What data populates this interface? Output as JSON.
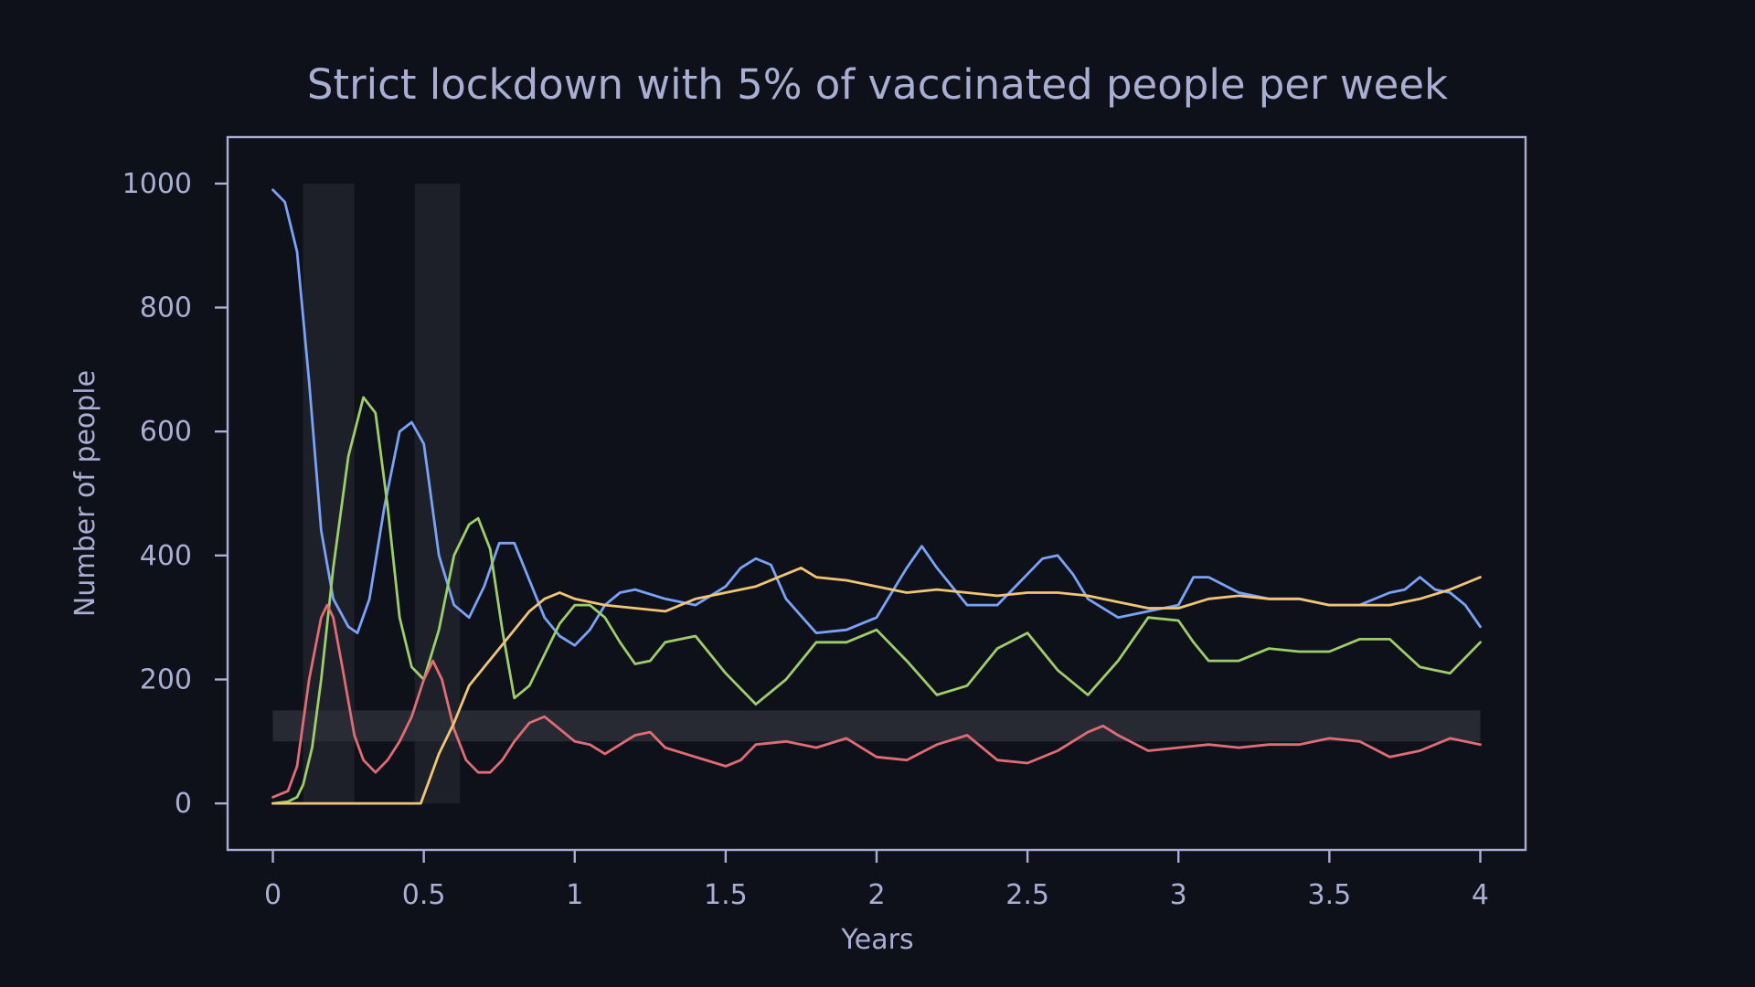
{
  "chart_data": {
    "type": "line",
    "title": "Strict lockdown with 5% of vaccinated people per week",
    "xlabel": "Years",
    "ylabel": "Number of people",
    "xlim": [
      -0.15,
      4.15
    ],
    "ylim": [
      -75,
      1075
    ],
    "x_ticks": [
      0,
      0.5,
      1,
      1.5,
      2,
      2.5,
      3,
      3.5,
      4
    ],
    "x_tick_labels": [
      "0",
      "0.5",
      "1",
      "1.5",
      "2",
      "2.5",
      "3",
      "3.5",
      "4"
    ],
    "y_ticks": [
      0,
      200,
      400,
      600,
      800,
      1000
    ],
    "y_tick_labels": [
      "0",
      "200",
      "400",
      "600",
      "800",
      "1000"
    ],
    "grid": false,
    "shaded_regions": [
      {
        "x0": 0.1,
        "x1": 0.27,
        "y0": 0,
        "y1": 1000
      },
      {
        "x0": 0.47,
        "x1": 0.62,
        "y0": 0,
        "y1": 1000
      }
    ],
    "shaded_band": {
      "x0": 0,
      "x1": 4,
      "y0": 100,
      "y1": 150
    },
    "series": [
      {
        "color": "#7aa2f7",
        "x": [
          0,
          0.04,
          0.08,
          0.12,
          0.16,
          0.2,
          0.25,
          0.28,
          0.32,
          0.37,
          0.42,
          0.46,
          0.5,
          0.55,
          0.6,
          0.65,
          0.7,
          0.75,
          0.8,
          0.85,
          0.9,
          0.95,
          1.0,
          1.05,
          1.1,
          1.15,
          1.2,
          1.3,
          1.4,
          1.5,
          1.55,
          1.6,
          1.65,
          1.7,
          1.8,
          1.9,
          2.0,
          2.05,
          2.1,
          2.15,
          2.2,
          2.3,
          2.4,
          2.5,
          2.55,
          2.6,
          2.65,
          2.7,
          2.8,
          2.9,
          3.0,
          3.05,
          3.1,
          3.2,
          3.3,
          3.4,
          3.5,
          3.6,
          3.7,
          3.75,
          3.8,
          3.85,
          3.9,
          3.95,
          4.0
        ],
        "y": [
          990,
          970,
          890,
          680,
          440,
          330,
          285,
          275,
          330,
          480,
          600,
          615,
          580,
          400,
          320,
          300,
          350,
          420,
          420,
          360,
          300,
          270,
          255,
          280,
          320,
          340,
          345,
          330,
          320,
          350,
          380,
          395,
          385,
          330,
          275,
          280,
          300,
          340,
          380,
          415,
          380,
          320,
          320,
          370,
          395,
          400,
          370,
          330,
          300,
          310,
          320,
          365,
          365,
          340,
          330,
          330,
          320,
          320,
          340,
          345,
          365,
          345,
          340,
          320,
          285
        ]
      },
      {
        "color": "#9ece6a",
        "x": [
          0,
          0.05,
          0.08,
          0.1,
          0.13,
          0.16,
          0.2,
          0.25,
          0.3,
          0.34,
          0.38,
          0.42,
          0.46,
          0.5,
          0.55,
          0.6,
          0.65,
          0.68,
          0.72,
          0.76,
          0.8,
          0.85,
          0.9,
          0.95,
          1.0,
          1.05,
          1.1,
          1.15,
          1.2,
          1.25,
          1.3,
          1.4,
          1.5,
          1.6,
          1.7,
          1.8,
          1.9,
          2.0,
          2.1,
          2.2,
          2.3,
          2.4,
          2.5,
          2.6,
          2.7,
          2.8,
          2.9,
          3.0,
          3.05,
          3.1,
          3.2,
          3.3,
          3.4,
          3.5,
          3.6,
          3.7,
          3.8,
          3.9,
          4.0
        ],
        "y": [
          0,
          3,
          10,
          30,
          90,
          200,
          380,
          560,
          655,
          630,
          480,
          300,
          220,
          200,
          280,
          400,
          450,
          460,
          410,
          280,
          170,
          190,
          240,
          290,
          320,
          320,
          300,
          260,
          225,
          230,
          260,
          270,
          210,
          160,
          200,
          260,
          260,
          280,
          230,
          175,
          190,
          250,
          275,
          215,
          175,
          230,
          300,
          295,
          260,
          230,
          230,
          250,
          245,
          245,
          265,
          265,
          220,
          210,
          260
        ]
      },
      {
        "color": "#e06c75",
        "x": [
          0,
          0.05,
          0.08,
          0.12,
          0.16,
          0.18,
          0.2,
          0.23,
          0.27,
          0.3,
          0.34,
          0.38,
          0.42,
          0.46,
          0.5,
          0.53,
          0.56,
          0.6,
          0.64,
          0.68,
          0.72,
          0.76,
          0.8,
          0.85,
          0.9,
          0.95,
          1.0,
          1.05,
          1.1,
          1.2,
          1.25,
          1.3,
          1.4,
          1.5,
          1.55,
          1.6,
          1.7,
          1.8,
          1.9,
          2.0,
          2.1,
          2.2,
          2.3,
          2.4,
          2.5,
          2.6,
          2.7,
          2.75,
          2.8,
          2.9,
          3.0,
          3.1,
          3.2,
          3.3,
          3.4,
          3.5,
          3.6,
          3.7,
          3.8,
          3.9,
          4.0
        ],
        "y": [
          10,
          20,
          60,
          200,
          300,
          320,
          300,
          220,
          110,
          70,
          50,
          70,
          100,
          140,
          200,
          230,
          200,
          120,
          70,
          50,
          50,
          70,
          100,
          130,
          140,
          120,
          100,
          95,
          80,
          110,
          115,
          90,
          75,
          60,
          70,
          95,
          100,
          90,
          105,
          75,
          70,
          95,
          110,
          70,
          65,
          85,
          115,
          125,
          110,
          85,
          90,
          95,
          90,
          95,
          95,
          105,
          100,
          75,
          85,
          105,
          95
        ]
      },
      {
        "color": "#f0c674",
        "x": [
          0,
          0.1,
          0.2,
          0.3,
          0.4,
          0.49,
          0.52,
          0.55,
          0.6,
          0.65,
          0.7,
          0.75,
          0.8,
          0.85,
          0.9,
          0.95,
          1.0,
          1.1,
          1.2,
          1.3,
          1.4,
          1.5,
          1.6,
          1.7,
          1.75,
          1.8,
          1.9,
          2.0,
          2.1,
          2.2,
          2.3,
          2.4,
          2.5,
          2.6,
          2.7,
          2.8,
          2.9,
          3.0,
          3.1,
          3.2,
          3.3,
          3.4,
          3.5,
          3.6,
          3.7,
          3.8,
          3.9,
          4.0
        ],
        "y": [
          0,
          0,
          0,
          0,
          0,
          0,
          40,
          80,
          130,
          190,
          220,
          250,
          280,
          310,
          330,
          340,
          330,
          320,
          315,
          310,
          330,
          340,
          350,
          370,
          380,
          365,
          360,
          350,
          340,
          345,
          340,
          335,
          340,
          340,
          335,
          325,
          315,
          315,
          330,
          335,
          330,
          330,
          320,
          320,
          320,
          330,
          345,
          365
        ]
      }
    ]
  }
}
